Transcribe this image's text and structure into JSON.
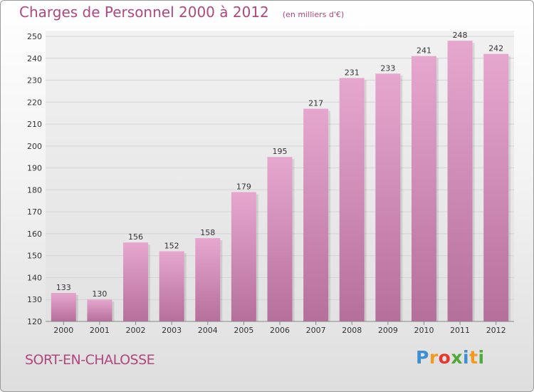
{
  "title": "Charges de Personnel 2000 à 2012",
  "unit_note": "(en milliers d'€)",
  "place_name": "SORT-EN-CHALOSSE",
  "logo": {
    "letters": [
      "P",
      "r",
      "o",
      "x",
      "i",
      "t",
      "i"
    ],
    "colors": [
      "#3c8fd1",
      "#f29a1f",
      "#e8362f",
      "#4faa3a",
      "#3c8fd1",
      "#f29a1f",
      "#4faa3a"
    ]
  },
  "colors": {
    "bar_top": "#e6a7cf",
    "bar_bottom": "#b56f9b",
    "grid": "#d4d4d4",
    "axis_text": "#333333"
  },
  "chart_data": {
    "type": "bar",
    "categories": [
      "2000",
      "2001",
      "2002",
      "2003",
      "2004",
      "2005",
      "2006",
      "2007",
      "2008",
      "2009",
      "2010",
      "2011",
      "2012"
    ],
    "values": [
      133,
      130,
      156,
      152,
      158,
      179,
      195,
      217,
      231,
      233,
      241,
      248,
      242
    ],
    "ylim": [
      120,
      250
    ],
    "yticks": [
      120,
      130,
      140,
      150,
      160,
      170,
      180,
      190,
      200,
      210,
      220,
      230,
      240,
      250
    ],
    "grid": true,
    "data_labels": true
  }
}
